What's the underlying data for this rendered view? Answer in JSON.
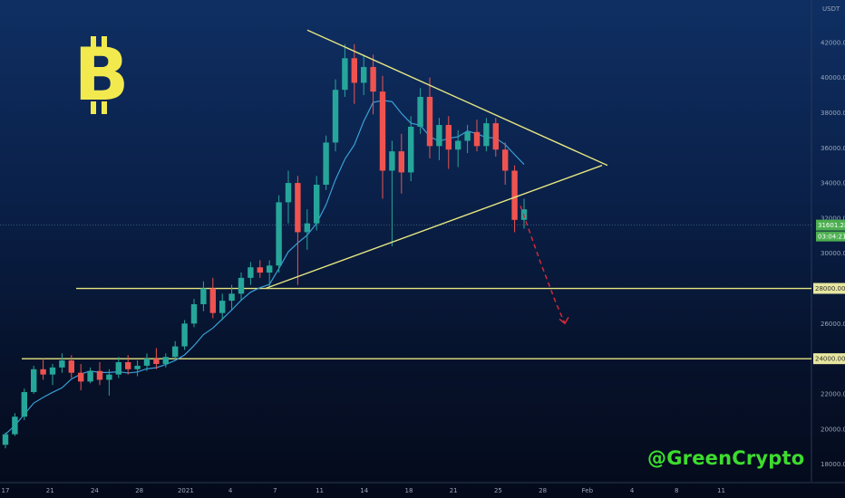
{
  "chart_data": {
    "type": "candlestick",
    "title": "",
    "xlabel": "",
    "ylabel": "",
    "y_unit": "USDT",
    "y_axis_side": "right",
    "ylim": [
      17000,
      44000
    ],
    "yticks": [
      18000,
      20000,
      22000,
      24000,
      26000,
      28000,
      30000,
      32000,
      34000,
      36000,
      38000,
      40000,
      42000
    ],
    "ytick_labels": [
      "18000.00",
      "20000.00",
      "22000.00",
      "24000.00",
      "26000.00",
      "28000.00",
      "30000.00",
      "32000.00",
      "34000.00",
      "36000.00",
      "38000.00",
      "40000.00",
      "42000.00"
    ],
    "x_tick_labels": [
      "17",
      "21",
      "24",
      "28",
      "2021",
      "4",
      "7",
      "11",
      "14",
      "18",
      "21",
      "25",
      "28",
      "Feb",
      "4",
      "8",
      "11"
    ],
    "candles_approx": [
      [
        19100,
        19800,
        18900,
        19700
      ],
      [
        19700,
        20900,
        19600,
        20700
      ],
      [
        20700,
        22300,
        20500,
        22100
      ],
      [
        22100,
        23600,
        22000,
        23400
      ],
      [
        23400,
        24000,
        22800,
        23100
      ],
      [
        23100,
        23700,
        22500,
        23500
      ],
      [
        23500,
        24300,
        23200,
        23900
      ],
      [
        23900,
        24200,
        22900,
        23200
      ],
      [
        23200,
        23700,
        22200,
        22700
      ],
      [
        22700,
        23500,
        22600,
        23300
      ],
      [
        23300,
        23800,
        22500,
        22800
      ],
      [
        22800,
        23400,
        21900,
        23100
      ],
      [
        23100,
        24100,
        22900,
        23800
      ],
      [
        23800,
        24200,
        23100,
        23400
      ],
      [
        23400,
        23900,
        23000,
        23600
      ],
      [
        23600,
        24300,
        23300,
        24000
      ],
      [
        24000,
        24600,
        23400,
        23700
      ],
      [
        23700,
        24300,
        23500,
        24100
      ],
      [
        24100,
        25000,
        23900,
        24700
      ],
      [
        24700,
        26200,
        24500,
        26000
      ],
      [
        26000,
        27400,
        25800,
        27100
      ],
      [
        27100,
        28400,
        26700,
        28000
      ],
      [
        28000,
        28600,
        26300,
        26600
      ],
      [
        26600,
        27700,
        26200,
        27300
      ],
      [
        27300,
        28200,
        26800,
        27700
      ],
      [
        27700,
        28900,
        27300,
        28600
      ],
      [
        28600,
        29500,
        28200,
        29200
      ],
      [
        29200,
        29600,
        28600,
        28900
      ],
      [
        28900,
        29600,
        28000,
        29300
      ],
      [
        29300,
        33300,
        28900,
        32900
      ],
      [
        32900,
        34700,
        31700,
        34000
      ],
      [
        34000,
        34400,
        28200,
        31200
      ],
      [
        31200,
        32500,
        30200,
        31700
      ],
      [
        31700,
        34400,
        31300,
        33900
      ],
      [
        33900,
        36700,
        33600,
        36300
      ],
      [
        36300,
        39900,
        35800,
        39300
      ],
      [
        39300,
        41900,
        38900,
        41100
      ],
      [
        41100,
        41900,
        38500,
        39700
      ],
      [
        39700,
        41300,
        39000,
        40600
      ],
      [
        40600,
        41300,
        37900,
        39200
      ],
      [
        39200,
        40100,
        33100,
        34700
      ],
      [
        34700,
        36400,
        30400,
        35800
      ],
      [
        35800,
        36800,
        33400,
        34600
      ],
      [
        34600,
        37800,
        34100,
        37200
      ],
      [
        37200,
        39400,
        36800,
        38900
      ],
      [
        38900,
        40000,
        35400,
        36100
      ],
      [
        36100,
        37700,
        35300,
        37300
      ],
      [
        37300,
        37800,
        34800,
        35900
      ],
      [
        35900,
        37000,
        34900,
        36400
      ],
      [
        36400,
        37300,
        35700,
        36900
      ],
      [
        36900,
        37600,
        35800,
        36100
      ],
      [
        36100,
        37700,
        35800,
        37400
      ],
      [
        37400,
        37700,
        35500,
        35900
      ],
      [
        35900,
        36300,
        33900,
        34700
      ],
      [
        34700,
        35000,
        31200,
        31900
      ],
      [
        31900,
        33100,
        31400,
        32500
      ]
    ],
    "moving_average": {
      "name": "",
      "color": "#3a9fd8"
    },
    "last_price_label": "31601.28",
    "countdown_label": "03:04:21",
    "horizontal_levels": [
      {
        "value": 28000,
        "label": "28000.00"
      },
      {
        "value": 24000,
        "label": "24000.00"
      }
    ],
    "pattern": "symmetrical triangle",
    "triangle_upper": {
      "from_index": 36,
      "to_index": 80,
      "from_value": 42700,
      "to_value": 35000
    },
    "triangle_lower": {
      "from_index": 30,
      "to_index": 80,
      "from_value": 28000,
      "to_value": 35000
    },
    "projection": [
      {
        "index": 58,
        "value": 32700
      },
      {
        "index": 65,
        "value": 26000
      }
    ],
    "grid": false,
    "legend": "none",
    "colors": {
      "up": "#26a69a",
      "down": "#ef5350",
      "pattern": "#e6e680",
      "level": "#e6e680",
      "projection": "#d42a3a",
      "label_bg": "#4caf50"
    }
  },
  "watermark": "@GreenCrypto",
  "logo": "bitcoin-symbol"
}
